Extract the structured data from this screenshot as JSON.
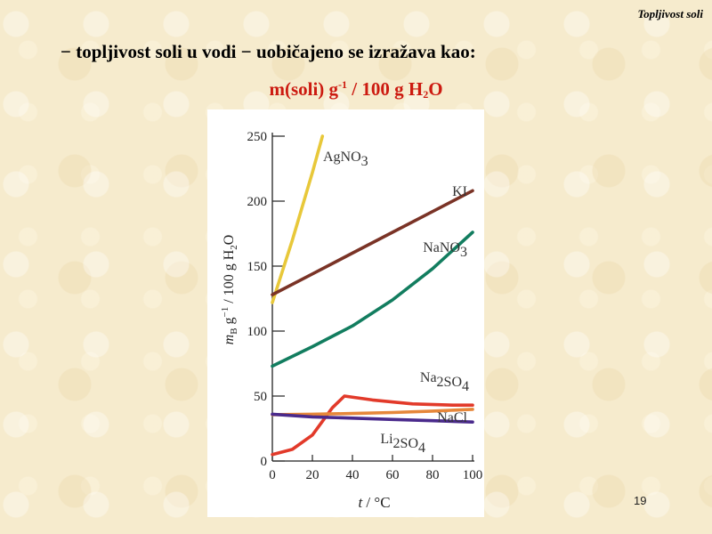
{
  "header": {
    "title": "Topljivost soli"
  },
  "content": {
    "bullet": "− topljivost soli u vodi − uobičajeno se izražava kao:",
    "formula": {
      "prefix": "m(soli) g",
      "exp": "-1",
      "mid": " / 100 g H",
      "sub": "2",
      "suffix": "O"
    }
  },
  "page_number": "19",
  "chart_data": {
    "type": "line",
    "xlabel": "t / °C",
    "ylabel": "mB g−1 / 100 g H2O",
    "xlim": [
      0,
      100
    ],
    "ylim": [
      0,
      250
    ],
    "xticks": [
      0,
      20,
      40,
      60,
      80,
      100
    ],
    "yticks": [
      0,
      50,
      100,
      150,
      200,
      250
    ],
    "grid": false,
    "series": [
      {
        "name": "AgNO3",
        "color": "#e8c83a",
        "x": [
          0,
          10,
          20,
          25
        ],
        "y": [
          122,
          170,
          222,
          250
        ]
      },
      {
        "name": "KI",
        "color": "#7a3326",
        "x": [
          0,
          20,
          40,
          60,
          80,
          100
        ],
        "y": [
          128,
          144,
          160,
          176,
          192,
          208
        ]
      },
      {
        "name": "NaNO3",
        "color": "#127d5f",
        "x": [
          0,
          20,
          40,
          60,
          80,
          100
        ],
        "y": [
          73,
          88,
          104,
          124,
          148,
          176
        ]
      },
      {
        "name": "Na2SO4",
        "color": "#e23a2a",
        "x": [
          0,
          10,
          20,
          30,
          36,
          50,
          70,
          90,
          100
        ],
        "y": [
          5,
          9,
          20,
          41,
          50,
          47,
          44,
          43,
          43
        ]
      },
      {
        "name": "NaCl",
        "color": "#e6873a",
        "x": [
          0,
          20,
          40,
          60,
          80,
          100
        ],
        "y": [
          35.7,
          36.0,
          36.6,
          37.3,
          38.4,
          39.8
        ]
      },
      {
        "name": "Li2SO4",
        "color": "#4a2a8c",
        "x": [
          0,
          20,
          40,
          60,
          80,
          100
        ],
        "y": [
          36,
          34,
          33,
          32,
          31,
          30
        ]
      }
    ]
  }
}
